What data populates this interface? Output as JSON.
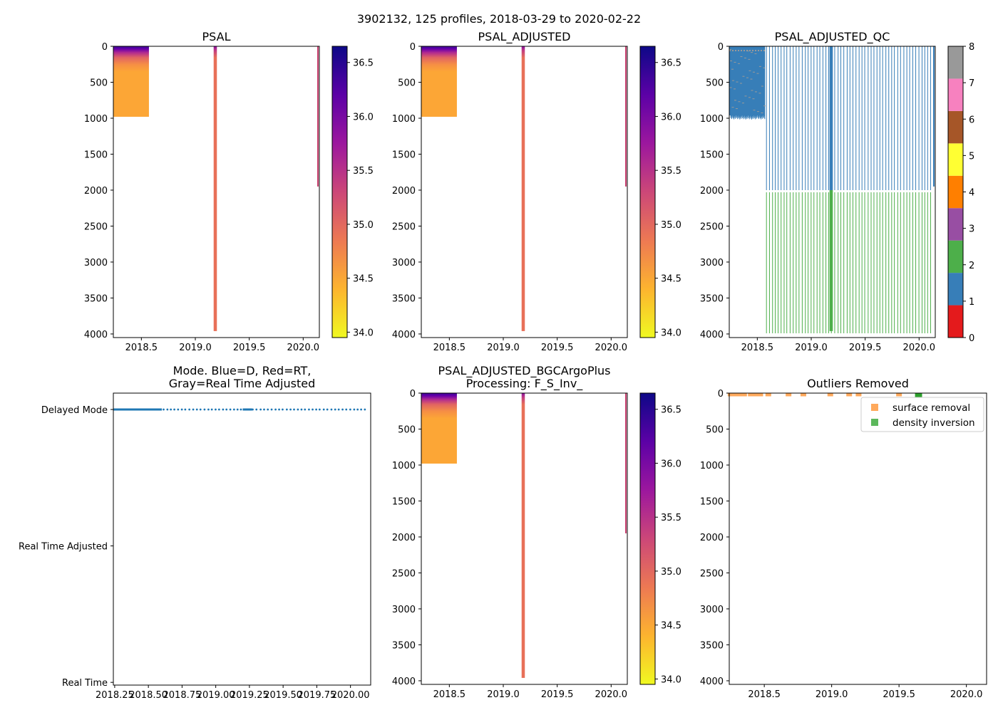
{
  "suptitle": "3902132, 125 profiles, 2018-03-29 to 2020-02-22",
  "colors": {
    "axis": "#000000",
    "profile_deep": "#e36f55",
    "mode_blue": "#1f77b4",
    "surface_removal": "#ffa95c",
    "density_inversion": "#5cb85c",
    "density_inversion_dark": "#2ca02c"
  },
  "colormap_plasma_r": [
    "#f0f921",
    "#fdb42f",
    "#ed7953",
    "#cc4778",
    "#9c179e",
    "#5c01a6",
    "#0d0887"
  ],
  "qc_palette": [
    "#e41a1c",
    "#377eb8",
    "#4daf4a",
    "#984ea3",
    "#ff7f00",
    "#ffff33",
    "#a65628",
    "#f781bf",
    "#999999"
  ],
  "chart_data": [
    {
      "id": "psal",
      "type": "heatmap",
      "title": "PSAL",
      "x_ticks": [
        "2018.5",
        "2019.0",
        "2019.5",
        "2020.0"
      ],
      "x_tick_values": [
        2018.5,
        2019.0,
        2019.5,
        2020.0
      ],
      "xlim": [
        2018.24,
        2020.15
      ],
      "y_ticks": [
        "0",
        "500",
        "1000",
        "1500",
        "2000",
        "2500",
        "3000",
        "3500",
        "4000"
      ],
      "y_tick_values": [
        0,
        500,
        1000,
        1500,
        2000,
        2500,
        3000,
        3500,
        4000
      ],
      "ylim": [
        4050,
        0
      ],
      "colorbar": {
        "ticks": [
          "34.0",
          "34.5",
          "35.0",
          "35.5",
          "36.0",
          "36.5"
        ],
        "tick_values": [
          34.0,
          34.5,
          35.0,
          35.5,
          36.0,
          36.5
        ],
        "range": [
          33.95,
          36.65
        ]
      },
      "shallow_block": {
        "x_range": [
          2018.24,
          2018.57
        ],
        "depth": 1000
      },
      "profile_max_depth": 3990,
      "profile_count": 125
    },
    {
      "id": "psal_adj",
      "type": "heatmap",
      "title": "PSAL_ADJUSTED",
      "x_ticks": [
        "2018.5",
        "2019.0",
        "2019.5",
        "2020.0"
      ],
      "x_tick_values": [
        2018.5,
        2019.0,
        2019.5,
        2020.0
      ],
      "xlim": [
        2018.24,
        2020.15
      ],
      "y_ticks": [
        "0",
        "500",
        "1000",
        "1500",
        "2000",
        "2500",
        "3000",
        "3500",
        "4000"
      ],
      "y_tick_values": [
        0,
        500,
        1000,
        1500,
        2000,
        2500,
        3000,
        3500,
        4000
      ],
      "ylim": [
        4050,
        0
      ],
      "colorbar": {
        "ticks": [
          "34.0",
          "34.5",
          "35.0",
          "35.5",
          "36.0",
          "36.5"
        ],
        "tick_values": [
          34.0,
          34.5,
          35.0,
          35.5,
          36.0,
          36.5
        ],
        "range": [
          33.95,
          36.65
        ]
      }
    },
    {
      "id": "psal_qc",
      "type": "heatmap",
      "title": "PSAL_ADJUSTED_QC",
      "x_ticks": [
        "2018.5",
        "2019.0",
        "2019.5",
        "2020.0"
      ],
      "x_tick_values": [
        2018.5,
        2019.0,
        2019.5,
        2020.0
      ],
      "xlim": [
        2018.24,
        2020.15
      ],
      "y_ticks": [
        "0",
        "500",
        "1000",
        "1500",
        "2000",
        "2500",
        "3000",
        "3500",
        "4000"
      ],
      "y_tick_values": [
        0,
        500,
        1000,
        1500,
        2000,
        2500,
        3000,
        3500,
        4000
      ],
      "ylim": [
        4050,
        0
      ],
      "qc_split_depth": 2000,
      "qc_upper_flag": 1,
      "qc_lower_flag": 2,
      "colorbar": {
        "ticks": [
          "0",
          "1",
          "2",
          "3",
          "4",
          "5",
          "6",
          "7",
          "8"
        ],
        "tick_values": [
          0,
          1,
          2,
          3,
          4,
          5,
          6,
          7,
          8
        ],
        "range": [
          0,
          8
        ]
      }
    },
    {
      "id": "mode",
      "type": "scatter",
      "title_lines": [
        "Mode. Blue=D, Red=RT,",
        "Gray=Real Time Adjusted"
      ],
      "y_categories": [
        "Delayed Mode",
        "Real Time Adjusted",
        "Real Time"
      ],
      "y_values": [
        2,
        1,
        0
      ],
      "x_ticks": [
        "2018.25",
        "2018.50",
        "2018.75",
        "2019.00",
        "2019.25",
        "2019.50",
        "2019.75",
        "2020.00"
      ],
      "x_tick_values": [
        2018.25,
        2018.5,
        2018.75,
        2019.0,
        2019.25,
        2019.5,
        2019.75,
        2020.0
      ],
      "xlim": [
        2018.24,
        2020.15
      ],
      "ylim": [
        -0.02,
        2.12
      ],
      "delayed_mode_x_range": [
        2018.24,
        2020.15
      ],
      "dense_until": 2018.6
    },
    {
      "id": "psal_bgc",
      "type": "heatmap",
      "title_lines": [
        "PSAL_ADJUSTED_BGCArgoPlus",
        "Processing: F_S_Inv_"
      ],
      "x_ticks": [
        "2018.5",
        "2019.0",
        "2019.5",
        "2020.0"
      ],
      "x_tick_values": [
        2018.5,
        2019.0,
        2019.5,
        2020.0
      ],
      "xlim": [
        2018.24,
        2020.15
      ],
      "y_ticks": [
        "0",
        "500",
        "1000",
        "1500",
        "2000",
        "2500",
        "3000",
        "3500",
        "4000"
      ],
      "y_tick_values": [
        0,
        500,
        1000,
        1500,
        2000,
        2500,
        3000,
        3500,
        4000
      ],
      "ylim": [
        4050,
        0
      ],
      "colorbar": {
        "ticks": [
          "34.0",
          "34.5",
          "35.0",
          "35.5",
          "36.0",
          "36.5"
        ],
        "tick_values": [
          34.0,
          34.5,
          35.0,
          35.5,
          36.0,
          36.5
        ],
        "range": [
          33.95,
          36.65
        ]
      }
    },
    {
      "id": "outliers",
      "type": "scatter",
      "title": "Outliers Removed",
      "x_ticks": [
        "2018.5",
        "2019.0",
        "2019.5",
        "2020.0"
      ],
      "x_tick_values": [
        2018.5,
        2019.0,
        2019.5,
        2020.0
      ],
      "xlim": [
        2018.24,
        2020.15
      ],
      "y_ticks": [
        "0",
        "500",
        "1000",
        "1500",
        "2000",
        "2500",
        "3000",
        "3500",
        "4000"
      ],
      "y_tick_values": [
        0,
        500,
        1000,
        1500,
        2000,
        2500,
        3000,
        3500,
        4000
      ],
      "ylim": [
        4050,
        0
      ],
      "legend": {
        "placement": "top-right",
        "entries": [
          "surface removal",
          "density inversion"
        ]
      },
      "surface_removal": [
        {
          "x": 2018.25,
          "y": 5
        },
        {
          "x": 2018.28,
          "y": 5
        },
        {
          "x": 2018.31,
          "y": 5
        },
        {
          "x": 2018.33,
          "y": 5
        },
        {
          "x": 2018.35,
          "y": 5
        },
        {
          "x": 2018.4,
          "y": 5
        },
        {
          "x": 2018.43,
          "y": 5
        },
        {
          "x": 2018.47,
          "y": 5
        },
        {
          "x": 2018.53,
          "y": 5
        },
        {
          "x": 2018.68,
          "y": 5
        },
        {
          "x": 2018.79,
          "y": 5
        },
        {
          "x": 2018.99,
          "y": 5
        },
        {
          "x": 2019.13,
          "y": 5
        },
        {
          "x": 2019.2,
          "y": 5
        },
        {
          "x": 2019.5,
          "y": 5
        }
      ],
      "density_inversion": [
        {
          "x": 2019.64,
          "y": 5
        },
        {
          "x": 2019.65,
          "y": 5
        }
      ]
    }
  ]
}
